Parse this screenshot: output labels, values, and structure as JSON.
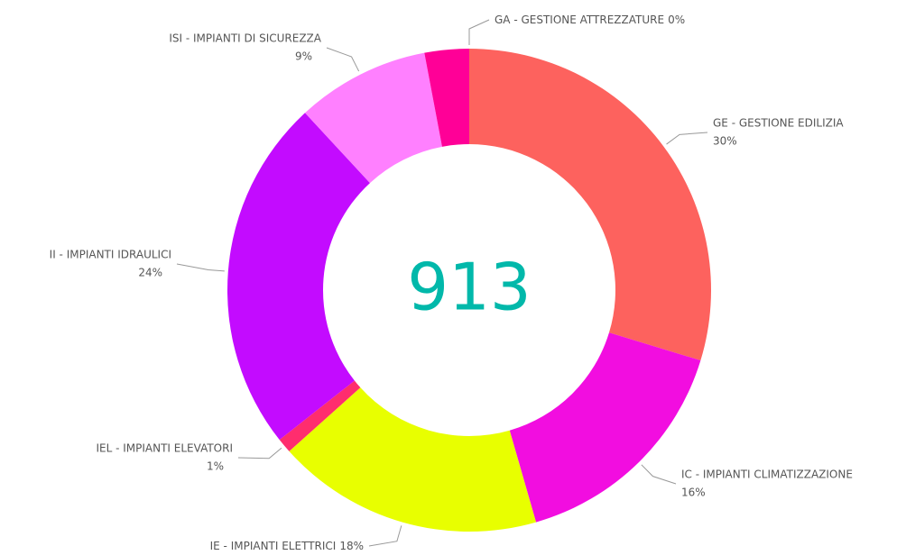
{
  "chart_data": {
    "type": "donut",
    "center_label": "913",
    "categories": [
      "GA - GESTIONE ATTREZZATURE",
      "GE - GESTIONE EDILIZIA",
      "IC - IMPIANTI CLIMATIZZAZIONE",
      "IE - IMPIANTI ELETTRICI",
      "IEL - IMPIANTI ELEVATORI",
      "II - IMPIANTI IDRAULICI",
      "ISI - IMPIANTI DI SICUREZZA",
      null
    ],
    "values": [
      0,
      30,
      16,
      18,
      1,
      24,
      9,
      3
    ],
    "value_labels": [
      "0%",
      "30%",
      "16%",
      "18%",
      "1%",
      "24%",
      "9%",
      null
    ],
    "colors": [
      "#8fbf5f",
      "#fd625e",
      "#f20de0",
      "#e8ff00",
      "#ff2d6e",
      "#c30bff",
      "#ff80ff",
      "#ff0097"
    ]
  }
}
